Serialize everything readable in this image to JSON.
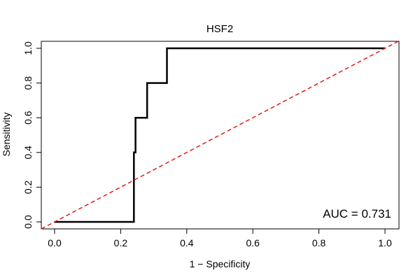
{
  "chart_data": {
    "type": "line",
    "title": "HSF2",
    "xlabel": "1 − Specificity",
    "ylabel": "Sensitivity",
    "xlim": [
      0,
      1
    ],
    "ylim": [
      0,
      1
    ],
    "x_ticks": [
      "0.0",
      "0.2",
      "0.4",
      "0.6",
      "0.8",
      "1.0"
    ],
    "y_ticks": [
      "0.0",
      "0.2",
      "0.4",
      "0.6",
      "0.8",
      "1.0"
    ],
    "grid": false,
    "series": [
      {
        "color": "#000000",
        "style": "solid",
        "x": [
          0,
          0.24,
          0.24,
          0.24,
          0.245,
          0.245,
          0.28,
          0.28,
          0.34,
          0.34,
          1.0
        ],
        "y": [
          0,
          0,
          0.2,
          0.4,
          0.4,
          0.6,
          0.6,
          0.8,
          0.8,
          1.0,
          1.0
        ]
      },
      {
        "color": "#e41a1c",
        "style": "dashed",
        "x": [
          -0.04,
          1.04
        ],
        "y": [
          -0.04,
          1.04
        ]
      }
    ],
    "annotation": "AUC = 0.731"
  }
}
